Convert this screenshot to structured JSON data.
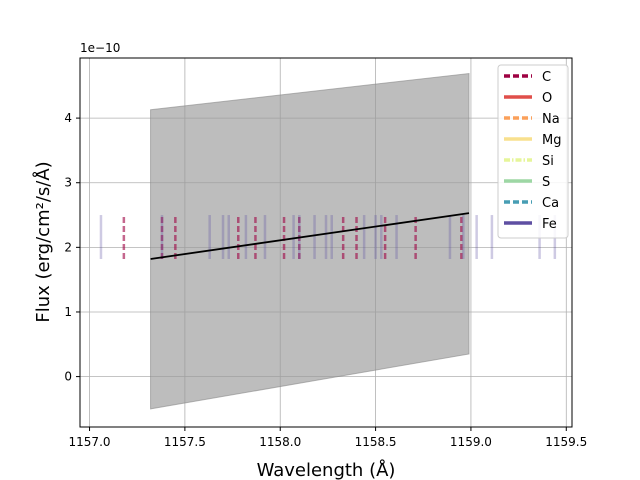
{
  "chart_data": {
    "type": "line",
    "title": "",
    "xlabel": "Wavelength (Å)",
    "ylabel": "Flux (erg/cm²/s/Å)",
    "y_scale_label": "1e−10",
    "xlim": [
      1156.95,
      1159.53
    ],
    "ylim": [
      -0.78,
      4.93
    ],
    "xticks": [
      1157.0,
      1157.5,
      1158.0,
      1158.5,
      1159.0,
      1159.5
    ],
    "xtick_labels": [
      "1157.0",
      "1157.5",
      "1158.0",
      "1158.5",
      "1159.0",
      "1159.5"
    ],
    "yticks": [
      0,
      1,
      2,
      3,
      4
    ],
    "ytick_labels": [
      "0",
      "1",
      "2",
      "3",
      "4"
    ],
    "grid": true,
    "legend_position": "top-right",
    "fit_line": {
      "x": [
        1157.32,
        1158.99
      ],
      "y": [
        1.82,
        2.53
      ],
      "color": "#000000"
    },
    "band": {
      "x": [
        1157.32,
        1158.99
      ],
      "upper": [
        4.13,
        4.69
      ],
      "lower": [
        -0.5,
        0.35
      ],
      "color": "#999999"
    },
    "line_markers": {
      "y_range": [
        1.82,
        2.5
      ]
    },
    "series": [
      {
        "name": "C",
        "color": "#9e0142",
        "dash": "dashed",
        "x": [
          1157.18,
          1157.38,
          1157.45,
          1157.78,
          1157.87,
          1158.02,
          1158.1,
          1158.33,
          1158.4,
          1158.55,
          1158.71,
          1158.95
        ]
      },
      {
        "name": "O",
        "color": "#e04f4a",
        "dash": "solid",
        "x": []
      },
      {
        "name": "Na",
        "color": "#fba05a",
        "dash": "dashed",
        "x": []
      },
      {
        "name": "Mg",
        "color": "#f8e08e",
        "dash": "solid",
        "x": []
      },
      {
        "name": "Si",
        "color": "#e6f59a",
        "dash": "dashdot",
        "x": []
      },
      {
        "name": "S",
        "color": "#9dd7a4",
        "dash": "solid",
        "x": []
      },
      {
        "name": "Ca",
        "color": "#479db4",
        "dash": "dashed",
        "x": []
      },
      {
        "name": "Fe",
        "color": "#5e4fa2",
        "dash": "solid",
        "x": [
          1157.06,
          1157.38,
          1157.63,
          1157.7,
          1157.73,
          1157.82,
          1157.92,
          1158.07,
          1158.1,
          1158.18,
          1158.24,
          1158.27,
          1158.44,
          1158.5,
          1158.53,
          1158.61,
          1158.89,
          1158.96,
          1159.03,
          1159.11,
          1159.36,
          1159.44
        ]
      }
    ]
  }
}
